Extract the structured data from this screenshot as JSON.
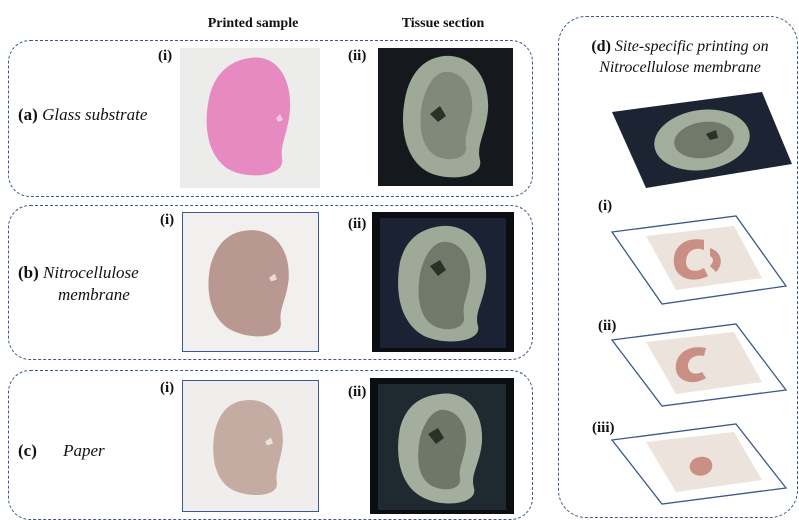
{
  "columns": {
    "printed": "Printed sample",
    "tissue": "Tissue section"
  },
  "rows": [
    {
      "letter": "(a)",
      "label": "Glass substrate",
      "tag_i": "(i)",
      "tag_ii": "(ii)"
    },
    {
      "letter": "(b)",
      "label_line1": "Nitrocellulose",
      "label_line2": "membrane",
      "tag_i": "(i)",
      "tag_ii": "(ii)"
    },
    {
      "letter": "(c)",
      "label": "Paper",
      "tag_i": "(i)",
      "tag_ii": "(ii)"
    }
  ],
  "panel_d": {
    "letter": "(d)",
    "title_line1": "Site-specific printing on",
    "title_line2": "Nitrocellulose membrane",
    "tags": [
      "(i)",
      "(ii)",
      "(iii)"
    ]
  },
  "colors": {
    "dash": "#3a5a8c",
    "glass_print": "#e78ac2",
    "nitro_print": "#b99892",
    "paper_print": "#c4aca2",
    "tissue_bg": "#0d0f12",
    "tissue_fill": "#9ea998"
  }
}
